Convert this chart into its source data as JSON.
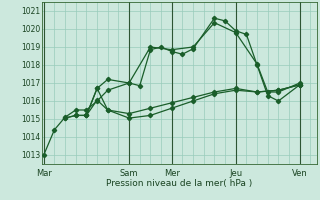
{
  "title": "",
  "xlabel": "Pression niveau de la mer( hPa )",
  "bg_color": "#cce8dd",
  "grid_color": "#99ccbb",
  "line_color": "#1a5e2a",
  "dark_line_color": "#1a4422",
  "ylim": [
    1012.5,
    1021.5
  ],
  "yticks": [
    1013,
    1014,
    1015,
    1016,
    1017,
    1018,
    1019,
    1020,
    1021
  ],
  "day_labels": [
    "Mar",
    "Sam",
    "Mer",
    "Jeu",
    "Ven"
  ],
  "day_positions": [
    0,
    4,
    6,
    9,
    12
  ],
  "xlim": [
    -0.1,
    12.8
  ],
  "vert_lines_x": [
    0,
    4,
    6,
    9,
    12
  ],
  "series": [
    {
      "x": [
        0,
        0.5,
        1,
        1.5,
        2,
        2.5,
        3,
        4,
        4.5,
        5,
        5.5,
        6,
        6.5,
        7,
        8,
        8.5,
        9,
        9.5,
        10,
        10.5,
        11,
        12
      ],
      "y": [
        1013.0,
        1014.4,
        1015.1,
        1015.5,
        1015.5,
        1016.0,
        1016.6,
        1017.0,
        1016.85,
        1018.85,
        1019.0,
        1018.75,
        1018.6,
        1018.9,
        1020.6,
        1020.45,
        1019.9,
        1019.7,
        1018.0,
        1016.3,
        1016.0,
        1016.9
      ]
    },
    {
      "x": [
        1,
        1.5,
        2,
        2.5,
        3,
        4,
        5,
        6,
        7,
        8,
        9,
        10,
        10.5,
        11,
        12
      ],
      "y": [
        1015.05,
        1015.2,
        1015.2,
        1016.7,
        1017.2,
        1017.0,
        1019.0,
        1018.85,
        1019.0,
        1020.35,
        1019.8,
        1018.05,
        1016.5,
        1016.5,
        1017.0
      ]
    },
    {
      "x": [
        1,
        1.5,
        2,
        2.5,
        3,
        4,
        5,
        6,
        7,
        8,
        9,
        10,
        11,
        12
      ],
      "y": [
        1015.05,
        1015.2,
        1015.2,
        1016.05,
        1015.5,
        1015.3,
        1015.6,
        1015.9,
        1016.2,
        1016.5,
        1016.7,
        1016.5,
        1016.6,
        1016.9
      ]
    },
    {
      "x": [
        2,
        2.5,
        3,
        4,
        5,
        6,
        7,
        8,
        9,
        10,
        11,
        12
      ],
      "y": [
        1015.2,
        1016.7,
        1015.5,
        1015.05,
        1015.2,
        1015.6,
        1016.0,
        1016.4,
        1016.6,
        1016.5,
        1016.6,
        1016.9
      ]
    }
  ]
}
